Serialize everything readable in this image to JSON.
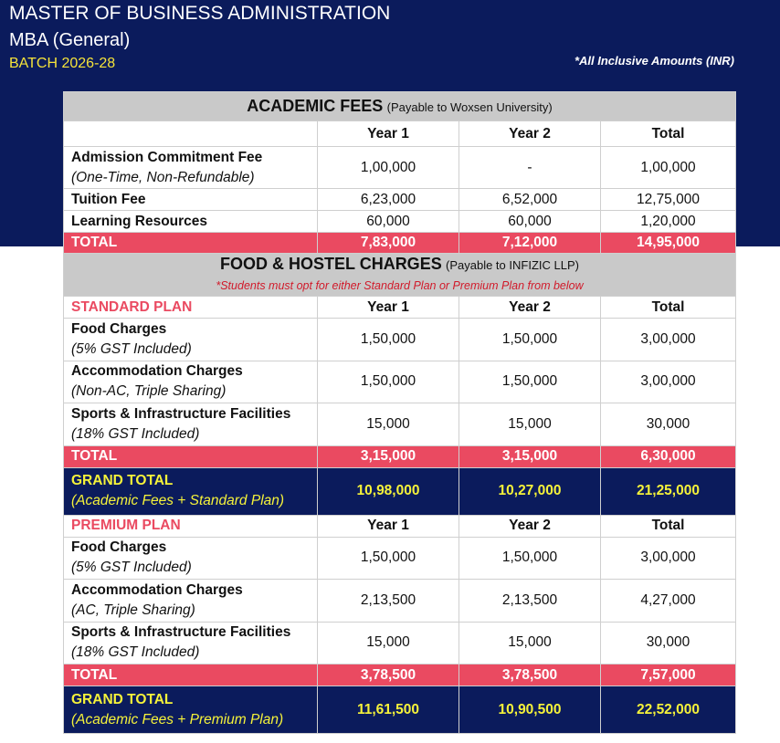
{
  "header": {
    "title": "MASTER OF BUSINESS ADMINISTRATION",
    "subtitle": "MBA (General)",
    "batch": "BATCH 2026-28",
    "note": "*All Inclusive Amounts (INR)"
  },
  "academic": {
    "title": "ACADEMIC FEES",
    "payable": "(Payable to Woxsen University)",
    "columns": [
      "Year 1",
      "Year 2",
      "Total"
    ],
    "rows": [
      {
        "label": "Admission Commitment Fee",
        "sublabel": "(One-Time, Non-Refundable)",
        "values": [
          "1,00,000",
          "-",
          "1,00,000"
        ]
      },
      {
        "label": "Tuition Fee",
        "values": [
          "6,23,000",
          "6,52,000",
          "12,75,000"
        ]
      },
      {
        "label": "Learning Resources",
        "values": [
          "60,000",
          "60,000",
          "1,20,000"
        ]
      }
    ],
    "total": {
      "label": "TOTAL",
      "values": [
        "7,83,000",
        "7,12,000",
        "14,95,000"
      ]
    }
  },
  "hostel": {
    "title": "FOOD & HOSTEL CHARGES",
    "payable": "(Payable to INFIZIC LLP)",
    "notice": "*Students must opt for either Standard Plan or Premium Plan from below",
    "plans": [
      {
        "name": "STANDARD PLAN",
        "columns": [
          "Year 1",
          "Year 2",
          "Total"
        ],
        "rows": [
          {
            "label": "Food Charges",
            "sublabel": "(5% GST Included)",
            "values": [
              "1,50,000",
              "1,50,000",
              "3,00,000"
            ]
          },
          {
            "label": "Accommodation Charges",
            "sublabel": "(Non-AC, Triple Sharing)",
            "values": [
              "1,50,000",
              "1,50,000",
              "3,00,000"
            ]
          },
          {
            "label": "Sports & Infrastructure Facilities",
            "sublabel": "(18% GST Included)",
            "values": [
              "15,000",
              "15,000",
              "30,000"
            ]
          }
        ],
        "total": {
          "label": "TOTAL",
          "values": [
            "3,15,000",
            "3,15,000",
            "6,30,000"
          ]
        },
        "grand_total": {
          "label": "GRAND TOTAL",
          "sublabel": "(Academic Fees + Standard Plan)",
          "values": [
            "10,98,000",
            "10,27,000",
            "21,25,000"
          ]
        }
      },
      {
        "name": "PREMIUM PLAN",
        "columns": [
          "Year 1",
          "Year 2",
          "Total"
        ],
        "rows": [
          {
            "label": "Food Charges",
            "sublabel": "(5% GST Included)",
            "values": [
              "1,50,000",
              "1,50,000",
              "3,00,000"
            ]
          },
          {
            "label": "Accommodation Charges",
            "sublabel": "(AC, Triple Sharing)",
            "values": [
              "2,13,500",
              "2,13,500",
              "4,27,000"
            ]
          },
          {
            "label": "Sports & Infrastructure Facilities",
            "sublabel": "(18% GST Included)",
            "values": [
              "15,000",
              "15,000",
              "30,000"
            ]
          }
        ],
        "total": {
          "label": "TOTAL",
          "values": [
            "3,78,500",
            "3,78,500",
            "7,57,000"
          ]
        },
        "grand_total": {
          "label": "GRAND TOTAL",
          "sublabel": "(Academic Fees + Premium Plan)",
          "values": [
            "11,61,500",
            "10,90,500",
            "22,52,000"
          ]
        }
      }
    ]
  }
}
